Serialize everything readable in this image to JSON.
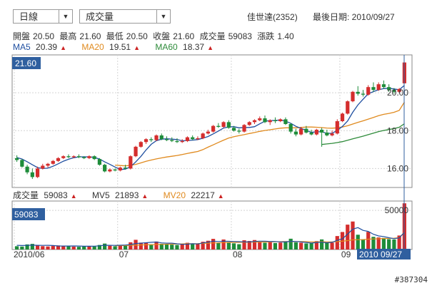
{
  "controls": {
    "period_label": "日線",
    "indicator_label": "成交量"
  },
  "header": {
    "stock_name": "佳世達(2352)",
    "last_date": "最後日期: 2010/09/27"
  },
  "quote": {
    "open_label": "開盤",
    "open": "20.50",
    "high_label": "最高",
    "high": "21.60",
    "low_label": "最低",
    "low": "20.50",
    "close_label": "收盤",
    "close": "21.60",
    "vol_label": "成交量",
    "vol": "59083",
    "chg_label": "漲跌",
    "chg": "1.40"
  },
  "ma_legend": [
    {
      "name": "MA5",
      "value": "20.39",
      "color": "#1f4fa0"
    },
    {
      "name": "MA20",
      "value": "19.51",
      "color": "#e08a1e"
    },
    {
      "name": "MA60",
      "value": "18.37",
      "color": "#2e8b3a"
    }
  ],
  "vol_legend": [
    {
      "name": "成交量",
      "value": "59083",
      "color": "#333333"
    },
    {
      "name": "MV5",
      "value": "21893",
      "color": "#1f4fa0"
    },
    {
      "name": "MV20",
      "value": "22217",
      "color": "#e08a1e"
    }
  ],
  "watermark": "#387304",
  "chart_data": {
    "type": "candlestick",
    "price_axis": {
      "ticks": [
        16.0,
        18.0,
        20.0
      ],
      "ylim": [
        15.0,
        22.0
      ],
      "current_label": "21.60"
    },
    "volume_axis": {
      "ticks": [
        50000
      ],
      "ylim": [
        0,
        62000
      ],
      "current_label": "59083"
    },
    "x_labels": [
      "2010/06",
      "07",
      "08",
      "09"
    ],
    "x_label_index": [
      0,
      20,
      42,
      63
    ],
    "last_date_label": "2010 09/27",
    "candles": [
      [
        16.55,
        16.7,
        16.35,
        16.45
      ],
      [
        16.45,
        16.5,
        16.05,
        16.1
      ],
      [
        16.1,
        16.2,
        15.7,
        15.8
      ],
      [
        15.8,
        16.0,
        15.45,
        15.55
      ],
      [
        15.55,
        16.1,
        15.5,
        16.0
      ],
      [
        16.0,
        16.25,
        15.95,
        16.15
      ],
      [
        16.15,
        16.3,
        16.05,
        16.25
      ],
      [
        16.25,
        16.45,
        16.2,
        16.4
      ],
      [
        16.4,
        16.6,
        16.35,
        16.55
      ],
      [
        16.55,
        16.7,
        16.5,
        16.65
      ],
      [
        16.65,
        16.75,
        16.55,
        16.6
      ],
      [
        16.6,
        16.7,
        16.55,
        16.65
      ],
      [
        16.65,
        16.75,
        16.55,
        16.6
      ],
      [
        16.6,
        16.65,
        16.5,
        16.55
      ],
      [
        16.55,
        16.7,
        16.5,
        16.65
      ],
      [
        16.65,
        16.7,
        16.45,
        16.5
      ],
      [
        16.5,
        16.55,
        16.15,
        16.2
      ],
      [
        16.2,
        16.25,
        15.8,
        15.85
      ],
      [
        15.85,
        16.0,
        15.8,
        15.95
      ],
      [
        15.95,
        16.0,
        15.85,
        15.9
      ],
      [
        15.9,
        16.1,
        15.85,
        16.05
      ],
      [
        16.05,
        16.2,
        15.95,
        16.0
      ],
      [
        16.0,
        16.7,
        15.95,
        16.65
      ],
      [
        16.65,
        17.2,
        16.6,
        17.15
      ],
      [
        17.15,
        17.45,
        17.1,
        17.4
      ],
      [
        17.4,
        17.6,
        17.3,
        17.55
      ],
      [
        17.55,
        17.65,
        17.4,
        17.5
      ],
      [
        17.5,
        17.8,
        17.45,
        17.75
      ],
      [
        17.75,
        17.85,
        17.5,
        17.55
      ],
      [
        17.55,
        17.7,
        17.45,
        17.5
      ],
      [
        17.5,
        17.65,
        17.4,
        17.45
      ],
      [
        17.45,
        17.6,
        17.35,
        17.4
      ],
      [
        17.4,
        17.55,
        17.35,
        17.45
      ],
      [
        17.45,
        17.7,
        17.4,
        17.65
      ],
      [
        17.65,
        17.75,
        17.5,
        17.55
      ],
      [
        17.55,
        17.7,
        17.5,
        17.6
      ],
      [
        17.6,
        17.9,
        17.55,
        17.85
      ],
      [
        17.85,
        18.05,
        17.8,
        17.95
      ],
      [
        17.95,
        18.3,
        17.9,
        18.25
      ],
      [
        18.25,
        18.4,
        18.15,
        18.2
      ],
      [
        18.2,
        18.5,
        18.15,
        18.45
      ],
      [
        18.45,
        18.55,
        18.1,
        18.15
      ],
      [
        18.15,
        18.25,
        17.95,
        18.0
      ],
      [
        18.0,
        18.1,
        17.85,
        17.95
      ],
      [
        17.95,
        18.35,
        17.9,
        18.3
      ],
      [
        18.3,
        18.5,
        18.25,
        18.45
      ],
      [
        18.45,
        18.6,
        18.35,
        18.55
      ],
      [
        18.55,
        18.75,
        18.5,
        18.65
      ],
      [
        18.65,
        18.8,
        18.4,
        18.45
      ],
      [
        18.45,
        18.6,
        18.3,
        18.55
      ],
      [
        18.55,
        18.7,
        18.4,
        18.5
      ],
      [
        18.5,
        18.65,
        18.45,
        18.6
      ],
      [
        18.6,
        18.7,
        18.3,
        18.35
      ],
      [
        18.35,
        18.4,
        17.85,
        17.95
      ],
      [
        17.95,
        18.1,
        17.7,
        17.8
      ],
      [
        17.8,
        18.2,
        17.75,
        18.1
      ],
      [
        18.1,
        18.25,
        17.85,
        17.9
      ],
      [
        17.9,
        18.05,
        17.75,
        17.8
      ],
      [
        17.8,
        18.1,
        17.75,
        18.05
      ],
      [
        18.05,
        18.15,
        17.15,
        17.9
      ],
      [
        17.9,
        18.05,
        17.7,
        17.75
      ],
      [
        17.75,
        18.0,
        17.7,
        17.85
      ],
      [
        17.85,
        18.6,
        17.8,
        18.5
      ],
      [
        18.5,
        18.95,
        18.45,
        18.9
      ],
      [
        18.9,
        19.6,
        18.85,
        19.55
      ],
      [
        19.55,
        20.1,
        19.5,
        20.05
      ],
      [
        20.05,
        20.35,
        19.85,
        19.95
      ],
      [
        19.95,
        20.15,
        19.8,
        19.9
      ],
      [
        19.9,
        20.4,
        19.85,
        20.3
      ],
      [
        20.3,
        20.55,
        20.05,
        20.15
      ],
      [
        20.15,
        20.55,
        20.1,
        20.45
      ],
      [
        20.45,
        20.65,
        20.2,
        20.3
      ],
      [
        20.3,
        20.45,
        20.05,
        20.15
      ],
      [
        20.15,
        20.25,
        19.95,
        20.05
      ],
      [
        20.05,
        20.25,
        20.0,
        20.2
      ],
      [
        20.5,
        21.6,
        20.5,
        21.6
      ]
    ],
    "volumes": [
      4200,
      3800,
      6500,
      7200,
      5100,
      4300,
      3900,
      4500,
      5200,
      4800,
      4100,
      3700,
      3500,
      3900,
      4600,
      4000,
      5800,
      7600,
      4800,
      4200,
      5300,
      4700,
      9200,
      12400,
      8800,
      9100,
      6700,
      10200,
      7400,
      6900,
      6200,
      5800,
      7100,
      8600,
      6800,
      7300,
      9900,
      11200,
      13600,
      8400,
      12800,
      9600,
      7900,
      6800,
      11800,
      10900,
      12100,
      9800,
      8700,
      9400,
      8300,
      8900,
      10600,
      13800,
      9200,
      8700,
      7800,
      8100,
      10700,
      12900,
      9300,
      8800,
      17200,
      22400,
      31800,
      35800,
      18900,
      13100,
      22600,
      16200,
      15400,
      14800,
      13200,
      12800,
      17900,
      59083
    ],
    "ma5": [
      16.58,
      16.5,
      16.36,
      16.2,
      16.05,
      16.0,
      16.02,
      16.12,
      16.25,
      16.39,
      16.49,
      16.57,
      16.62,
      16.62,
      16.62,
      16.59,
      16.5,
      16.35,
      16.22,
      16.08,
      15.95,
      15.97,
      16.09,
      16.35,
      16.64,
      16.98,
      17.28,
      17.47,
      17.55,
      17.57,
      17.55,
      17.53,
      17.47,
      17.48,
      17.5,
      17.53,
      17.6,
      17.69,
      17.83,
      17.98,
      18.14,
      18.2,
      18.21,
      18.15,
      18.17,
      18.17,
      18.21,
      18.36,
      18.5,
      18.53,
      18.54,
      18.56,
      18.5,
      18.39,
      18.23,
      18.12,
      18.02,
      17.91,
      17.94,
      17.94,
      17.86,
      17.86,
      18.02,
      18.22,
      18.51,
      18.97,
      19.36,
      19.66,
      19.95,
      20.06,
      20.16,
      20.22,
      20.24,
      20.2,
      20.16,
      20.39
    ],
    "ma20": [
      null,
      null,
      null,
      null,
      null,
      null,
      null,
      null,
      null,
      null,
      null,
      null,
      null,
      null,
      null,
      null,
      null,
      null,
      null,
      16.18,
      16.16,
      16.14,
      16.17,
      16.22,
      16.3,
      16.38,
      16.45,
      16.51,
      16.56,
      16.61,
      16.65,
      16.69,
      16.74,
      16.8,
      16.85,
      16.9,
      17.0,
      17.13,
      17.25,
      17.38,
      17.5,
      17.61,
      17.68,
      17.74,
      17.79,
      17.85,
      17.9,
      17.96,
      18.01,
      18.05,
      18.09,
      18.13,
      18.15,
      18.15,
      18.15,
      18.17,
      18.19,
      18.19,
      18.18,
      18.16,
      18.14,
      18.13,
      18.15,
      18.19,
      18.26,
      18.35,
      18.44,
      18.52,
      18.61,
      18.7,
      18.79,
      18.86,
      18.91,
      18.97,
      19.07,
      19.51
    ],
    "ma60": [
      null,
      null,
      null,
      null,
      null,
      null,
      null,
      null,
      null,
      null,
      null,
      null,
      null,
      null,
      null,
      null,
      null,
      null,
      null,
      null,
      null,
      null,
      null,
      null,
      null,
      null,
      null,
      null,
      null,
      null,
      null,
      null,
      null,
      null,
      null,
      null,
      null,
      null,
      null,
      null,
      null,
      null,
      null,
      null,
      null,
      null,
      null,
      null,
      null,
      null,
      null,
      null,
      null,
      null,
      null,
      null,
      null,
      null,
      null,
      17.27,
      17.3,
      17.33,
      17.37,
      17.42,
      17.49,
      17.57,
      17.64,
      17.71,
      17.79,
      17.87,
      17.95,
      18.01,
      18.06,
      18.11,
      18.18,
      18.37
    ],
    "mv5": [
      5400,
      5100,
      5300,
      5600,
      5400,
      5300,
      5400,
      5100,
      4600,
      4500,
      4500,
      4600,
      4500,
      4200,
      4200,
      4300,
      4700,
      5500,
      5400,
      5300,
      5500,
      5700,
      6300,
      7700,
      8100,
      8700,
      9200,
      9600,
      8500,
      8100,
      8100,
      7300,
      6700,
      6800,
      7400,
      7100,
      8400,
      9400,
      10800,
      10200,
      10700,
      10500,
      10200,
      10000,
      9800,
      9700,
      10300,
      10700,
      10700,
      10300,
      10200,
      9800,
      9700,
      10500,
      10300,
      9700,
      9000,
      8200,
      9000,
      9400,
      8600,
      9200,
      11700,
      13600,
      19700,
      26100,
      28000,
      24400,
      23200,
      19500,
      17300,
      16600,
      15000,
      13900,
      14900,
      21893
    ],
    "mv20": [
      null,
      null,
      null,
      null,
      null,
      null,
      null,
      null,
      null,
      null,
      null,
      null,
      null,
      null,
      null,
      null,
      null,
      null,
      null,
      4900,
      5000,
      5100,
      5400,
      5600,
      5800,
      6000,
      6100,
      6400,
      6600,
      6800,
      6900,
      7000,
      7200,
      7400,
      7500,
      7600,
      7800,
      8000,
      8400,
      8500,
      8800,
      9000,
      9100,
      9100,
      9300,
      9400,
      9600,
      9600,
      9700,
      9800,
      9900,
      10000,
      10100,
      10200,
      10100,
      10100,
      10000,
      9800,
      9700,
      9900,
      9800,
      9800,
      10100,
      10600,
      11400,
      12300,
      12600,
      12700,
      13200,
      13500,
      13700,
      14000,
      14200,
      14500,
      15000,
      22217
    ]
  }
}
